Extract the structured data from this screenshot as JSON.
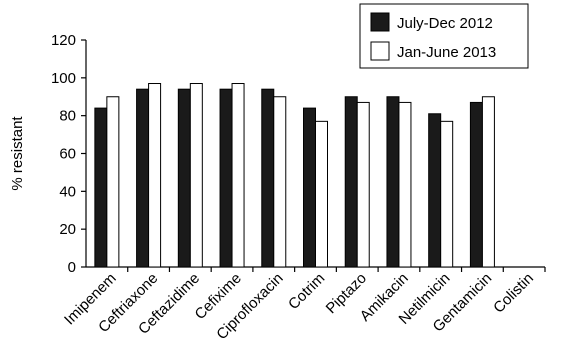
{
  "chart_data": {
    "type": "bar",
    "title": "",
    "xlabel": "",
    "ylabel": "% resistant",
    "ylim": [
      0,
      120
    ],
    "yticks": [
      0,
      20,
      40,
      60,
      80,
      100,
      120
    ],
    "categories": [
      "Imipenem",
      "Ceftriaxone",
      "Ceftazidime",
      "Cefixime",
      "Ciprofloxacin",
      "Cotrim",
      "Piptazo",
      "Amikacin",
      "Netilmicin",
      "Gentamicin",
      "Colistin"
    ],
    "series": [
      {
        "name": "July-Dec 2012",
        "color": "#1a1a1a",
        "values": [
          84,
          94,
          94,
          94,
          94,
          84,
          90,
          90,
          81,
          87,
          0
        ]
      },
      {
        "name": "Jan-June 2013",
        "color": "#ffffff",
        "values": [
          90,
          97,
          97,
          97,
          90,
          77,
          87,
          87,
          77,
          90,
          0
        ]
      }
    ],
    "legend_position": "top-right",
    "grid": false
  }
}
